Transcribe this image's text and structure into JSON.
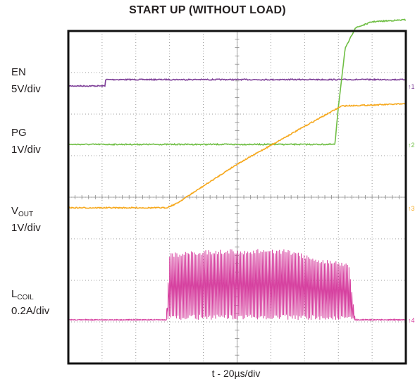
{
  "chart_data": {
    "type": "line",
    "title": "START UP (WITHOUT LOAD)",
    "xlabel": "t - 20µs/div",
    "grid": true,
    "divisions": {
      "x": 10,
      "y": 8
    },
    "series": [
      {
        "name": "EN",
        "scale": "5V/div",
        "color": "#7e3f98",
        "marker": "1",
        "labels": [
          "EN",
          "5V/div"
        ],
        "x": [
          0,
          1.1,
          1.1,
          10
        ],
        "y": [
          0.0,
          0.0,
          1.0,
          1.0
        ]
      },
      {
        "name": "PG",
        "scale": "1V/div",
        "color": "#6fbe44",
        "marker": "2",
        "labels": [
          "PG",
          "1V/div"
        ],
        "x": [
          0,
          7.9,
          8.0,
          8.2,
          8.5,
          9.0,
          10
        ],
        "y": [
          0.0,
          0.0,
          0.9,
          2.3,
          2.8,
          2.95,
          3.0
        ]
      },
      {
        "name": "VOUT",
        "scale": "1V/div",
        "color": "#f6a81c",
        "marker": "3",
        "labels": [
          "V",
          "OUT",
          "1V/div"
        ],
        "x": [
          0,
          2.9,
          3.2,
          5.0,
          7.2,
          8.1,
          10
        ],
        "y": [
          0.0,
          0.0,
          0.1,
          1.05,
          2.05,
          2.45,
          2.5
        ]
      },
      {
        "name": "LCOIL",
        "scale": "0.2A/div",
        "color": "#d6409f",
        "marker": "4",
        "labels": [
          "L",
          "COIL",
          "0.2A/div"
        ],
        "x": [
          0,
          2.9,
          3.0,
          4.5,
          5.5,
          6.5,
          7.5,
          8.3,
          8.5,
          10
        ],
        "y": [
          0.0,
          0.0,
          2.0,
          2.1,
          2.1,
          2.1,
          1.8,
          1.7,
          0.0,
          0.0
        ]
      }
    ]
  }
}
